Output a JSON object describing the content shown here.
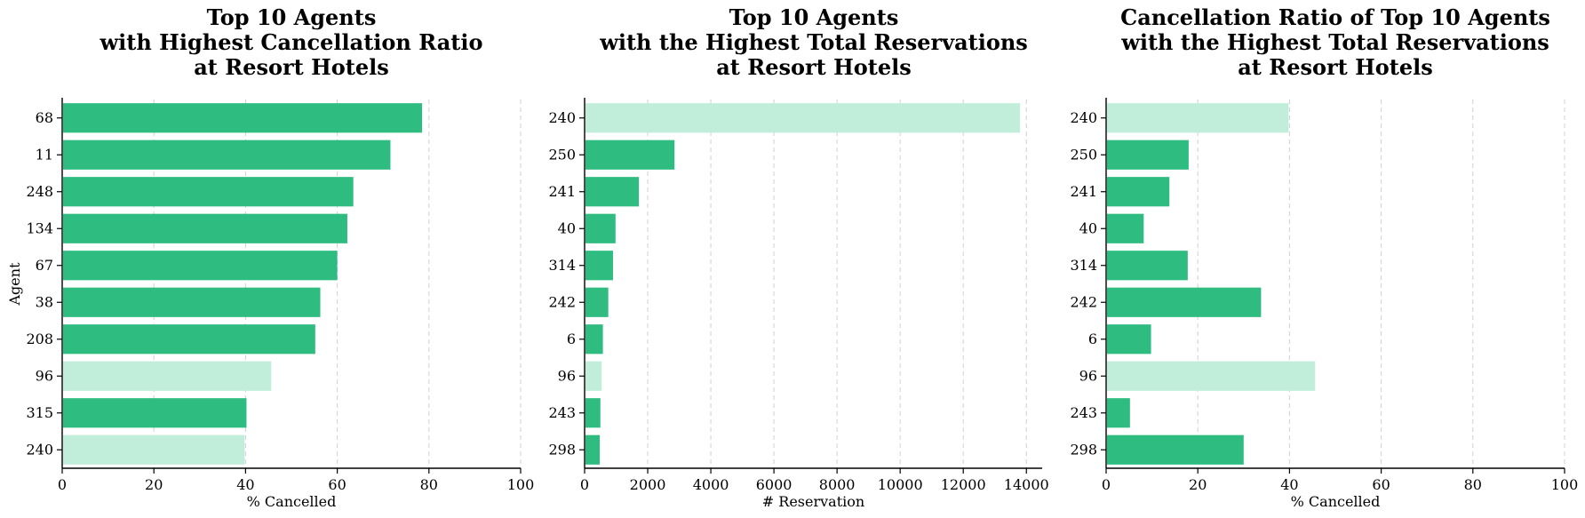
{
  "colors": {
    "highlight": "#2ebc81",
    "muted": "#c0eedb"
  },
  "chart_data": [
    {
      "type": "bar",
      "orientation": "horizontal",
      "title_lines": [
        "Top 10 Agents",
        "with Highest Cancellation Ratio",
        "at Resort Hotels"
      ],
      "xlabel": "% Cancelled",
      "ylabel": "Agent",
      "xlim": [
        0,
        100
      ],
      "xticks": [
        "0",
        "20",
        "40",
        "60",
        "80",
        "100"
      ],
      "grid": "x-dashed",
      "categories": [
        "68",
        "11",
        "248",
        "134",
        "67",
        "38",
        "208",
        "96",
        "315",
        "240"
      ],
      "values": [
        78.5,
        71.6,
        63.5,
        62.2,
        60.0,
        56.3,
        55.2,
        45.6,
        40.2,
        39.8
      ],
      "highlighted": [
        true,
        true,
        true,
        true,
        true,
        true,
        true,
        false,
        true,
        false
      ]
    },
    {
      "type": "bar",
      "orientation": "horizontal",
      "title_lines": [
        "Top 10 Agents",
        "with the Highest Total Reservations",
        "at Resort Hotels"
      ],
      "xlabel": "# Reservation",
      "ylabel": "",
      "xlim": [
        0,
        14500
      ],
      "xticks": [
        "0",
        "2000",
        "4000",
        "6000",
        "8000",
        "10000",
        "12000",
        "14000"
      ],
      "grid": "x-dashed",
      "categories": [
        "240",
        "250",
        "241",
        "40",
        "314",
        "242",
        "6",
        "96",
        "243",
        "298"
      ],
      "values": [
        13800,
        2850,
        1720,
        980,
        900,
        750,
        580,
        540,
        500,
        480
      ],
      "highlighted": [
        false,
        true,
        true,
        true,
        true,
        true,
        true,
        false,
        true,
        true
      ]
    },
    {
      "type": "bar",
      "orientation": "horizontal",
      "title_lines": [
        "Cancellation Ratio of Top 10 Agents",
        "with the Highest Total Reservations",
        "at Resort Hotels"
      ],
      "xlabel": "% Cancelled",
      "ylabel": "",
      "xlim": [
        0,
        100
      ],
      "xticks": [
        "0",
        "20",
        "40",
        "60",
        "80",
        "100"
      ],
      "grid": "x-dashed",
      "categories": [
        "240",
        "250",
        "241",
        "40",
        "314",
        "242",
        "6",
        "96",
        "243",
        "298"
      ],
      "values": [
        39.8,
        18.0,
        13.8,
        8.2,
        17.8,
        33.8,
        9.8,
        45.6,
        5.2,
        30.0
      ],
      "highlighted": [
        false,
        true,
        true,
        true,
        true,
        true,
        true,
        false,
        true,
        true
      ]
    }
  ]
}
